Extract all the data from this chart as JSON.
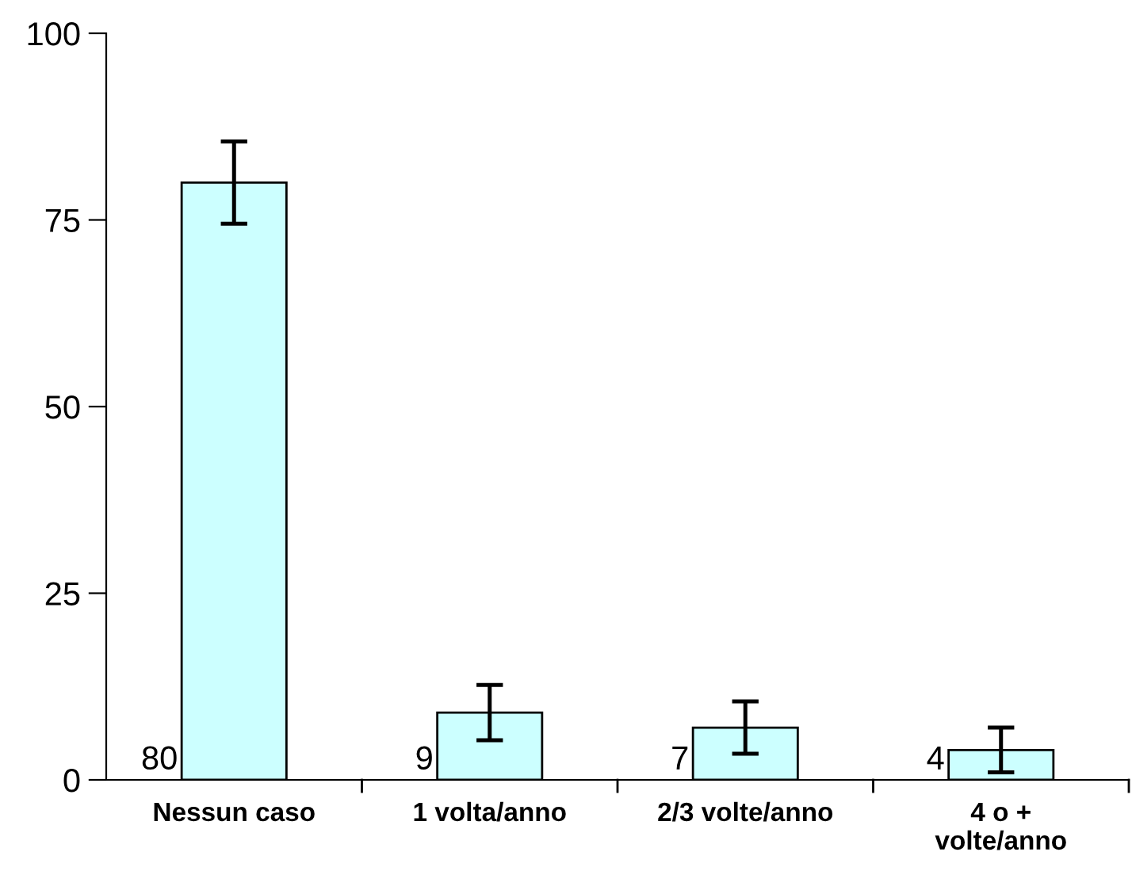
{
  "chart_data": {
    "type": "bar",
    "categories": [
      "Nessun caso",
      "1 volta/anno",
      "2/3 volte/anno",
      "4 o +\nvolte/anno"
    ],
    "values": [
      80,
      9,
      7,
      4
    ],
    "errors": [
      5.5,
      3.7,
      3.5,
      3
    ],
    "color": "#ccffff",
    "ylim": [
      0,
      100
    ],
    "yticks": [
      0,
      25,
      50,
      75,
      100
    ],
    "data_labels": true,
    "grid": false
  }
}
